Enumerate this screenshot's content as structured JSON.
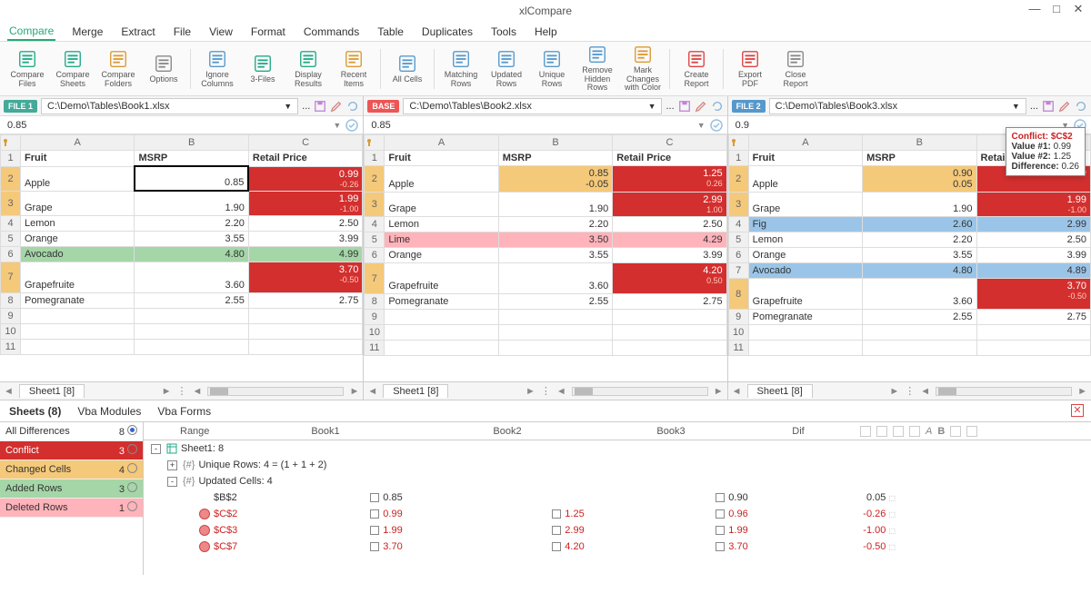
{
  "app": {
    "title": "xlCompare"
  },
  "menu": [
    "Compare",
    "Merge",
    "Extract",
    "File",
    "View",
    "Format",
    "Commands",
    "Table",
    "Duplicates",
    "Tools",
    "Help"
  ],
  "ribbon": [
    {
      "id": "compare-files",
      "label": "Compare\nFiles",
      "color": "#2a8"
    },
    {
      "id": "compare-sheets",
      "label": "Compare\nSheets",
      "color": "#2a8"
    },
    {
      "id": "compare-folders",
      "label": "Compare\nFolders",
      "color": "#d93"
    },
    {
      "id": "options",
      "label": "Options",
      "color": "#888"
    },
    {
      "id": "ignore-columns",
      "label": "Ignore\nColumns",
      "color": "#59c"
    },
    {
      "id": "three-files",
      "label": "3-Files",
      "color": "#2a8"
    },
    {
      "id": "display-results",
      "label": "Display\nResults",
      "color": "#2a8"
    },
    {
      "id": "recent-items",
      "label": "Recent\nItems",
      "color": "#d93"
    },
    {
      "id": "all-cells",
      "label": "All Cells",
      "color": "#59c"
    },
    {
      "id": "matching-rows",
      "label": "Matching\nRows",
      "color": "#59c"
    },
    {
      "id": "updated-rows",
      "label": "Updated\nRows",
      "color": "#59c"
    },
    {
      "id": "unique-rows",
      "label": "Unique\nRows",
      "color": "#59c"
    },
    {
      "id": "remove-hidden",
      "label": "Remove\nHidden Rows",
      "color": "#59c"
    },
    {
      "id": "mark-changes",
      "label": "Mark Changes\nwith Color",
      "color": "#d93"
    },
    {
      "id": "create-report",
      "label": "Create\nReport",
      "color": "#d44"
    },
    {
      "id": "export-pdf",
      "label": "Export\nPDF",
      "color": "#d44"
    },
    {
      "id": "close-report",
      "label": "Close\nReport",
      "color": "#888"
    }
  ],
  "panes": [
    {
      "badge": "FILE 1",
      "badgeClass": "green",
      "path": "C:\\Demo\\Tables\\Book1.xlsx",
      "fx": "0.85",
      "cols": [
        "A",
        "B",
        "C"
      ],
      "headers": [
        "Fruit",
        "MSRP",
        "Retail Price"
      ],
      "rows": [
        {
          "n": 1,
          "hdr": true
        },
        {
          "n": 2,
          "mark": true,
          "cells": [
            {
              "v": "Apple"
            },
            {
              "v": "0.85",
              "sel": true,
              "num": true
            },
            {
              "v": "0.99",
              "sub": "-0.26",
              "cls": "diff-red",
              "num": true
            }
          ]
        },
        {
          "n": 3,
          "mark": true,
          "cells": [
            {
              "v": "Grape"
            },
            {
              "v": "1.90",
              "num": true
            },
            {
              "v": "1.99",
              "sub": "-1.00",
              "cls": "diff-red",
              "num": true
            }
          ]
        },
        {
          "n": 4,
          "cells": [
            {
              "v": "Lemon"
            },
            {
              "v": "2.20",
              "num": true
            },
            {
              "v": "2.50",
              "num": true
            }
          ]
        },
        {
          "n": 5,
          "cells": [
            {
              "v": "Orange"
            },
            {
              "v": "3.55",
              "num": true
            },
            {
              "v": "3.99",
              "num": true
            }
          ]
        },
        {
          "n": 6,
          "cells": [
            {
              "v": "Avocado",
              "cls": "added"
            },
            {
              "v": "4.80",
              "cls": "added",
              "num": true
            },
            {
              "v": "4.99",
              "cls": "added",
              "num": true
            }
          ]
        },
        {
          "n": 7,
          "mark": true,
          "cells": [
            {
              "v": "Grapefruite"
            },
            {
              "v": "3.60",
              "num": true
            },
            {
              "v": "3.70",
              "sub": "-0.50",
              "cls": "diff-red",
              "num": true
            }
          ],
          "tall": true
        },
        {
          "n": 8,
          "cells": [
            {
              "v": "Pomegranate"
            },
            {
              "v": "2.55",
              "num": true
            },
            {
              "v": "2.75",
              "num": true
            }
          ]
        },
        {
          "n": 9,
          "cells": [
            {
              "v": ""
            },
            {
              "v": ""
            },
            {
              "v": ""
            }
          ]
        },
        {
          "n": 10,
          "cells": [
            {
              "v": ""
            },
            {
              "v": ""
            },
            {
              "v": ""
            }
          ]
        },
        {
          "n": 11,
          "cells": [
            {
              "v": ""
            },
            {
              "v": ""
            },
            {
              "v": ""
            }
          ]
        }
      ],
      "sheet": "Sheet1 [8]"
    },
    {
      "badge": "BASE",
      "badgeClass": "red",
      "path": "C:\\Demo\\Tables\\Book2.xlsx",
      "fx": "0.85",
      "cols": [
        "A",
        "B",
        "C"
      ],
      "headers": [
        "Fruit",
        "MSRP",
        "Retail Price"
      ],
      "rows": [
        {
          "n": 1,
          "hdr": true
        },
        {
          "n": 2,
          "mark": true,
          "cells": [
            {
              "v": "Apple"
            },
            {
              "v": "0.85",
              "sub": "-0.05",
              "cls": "diff-orange",
              "num": true
            },
            {
              "v": "1.25",
              "sub": "0.26",
              "cls": "diff-red",
              "num": true
            }
          ]
        },
        {
          "n": 3,
          "mark": true,
          "cells": [
            {
              "v": "Grape"
            },
            {
              "v": "1.90",
              "num": true
            },
            {
              "v": "2.99",
              "sub": "1.00",
              "cls": "diff-red",
              "num": true
            }
          ]
        },
        {
          "n": 4,
          "cells": [
            {
              "v": "Lemon"
            },
            {
              "v": "2.20",
              "num": true
            },
            {
              "v": "2.50",
              "num": true
            }
          ]
        },
        {
          "n": 5,
          "cells": [
            {
              "v": "Lime",
              "cls": "deleted"
            },
            {
              "v": "3.50",
              "cls": "deleted",
              "num": true
            },
            {
              "v": "4.29",
              "cls": "deleted",
              "num": true
            }
          ]
        },
        {
          "n": 6,
          "cells": [
            {
              "v": "Orange"
            },
            {
              "v": "3.55",
              "num": true
            },
            {
              "v": "3.99",
              "num": true
            }
          ]
        },
        {
          "n": 7,
          "mark": true,
          "cells": [
            {
              "v": "Grapefruite"
            },
            {
              "v": "3.60",
              "num": true
            },
            {
              "v": "4.20",
              "sub": "0.50",
              "cls": "diff-red",
              "num": true
            }
          ],
          "tall": true
        },
        {
          "n": 8,
          "cells": [
            {
              "v": "Pomegranate"
            },
            {
              "v": "2.55",
              "num": true
            },
            {
              "v": "2.75",
              "num": true
            }
          ]
        },
        {
          "n": 9,
          "cells": [
            {
              "v": ""
            },
            {
              "v": ""
            },
            {
              "v": ""
            }
          ]
        },
        {
          "n": 10,
          "cells": [
            {
              "v": ""
            },
            {
              "v": ""
            },
            {
              "v": ""
            }
          ]
        },
        {
          "n": 11,
          "cells": [
            {
              "v": ""
            },
            {
              "v": ""
            },
            {
              "v": ""
            }
          ]
        }
      ],
      "sheet": "Sheet1 [8]"
    },
    {
      "badge": "FILE 2",
      "badgeClass": "blue",
      "path": "C:\\Demo\\Tables\\Book3.xlsx",
      "fx": "0.9",
      "cols": [
        "A",
        "B",
        "C"
      ],
      "headers": [
        "Fruit",
        "MSRP",
        "Retail Price"
      ],
      "rows": [
        {
          "n": 1,
          "hdr": true
        },
        {
          "n": 2,
          "mark": true,
          "cells": [
            {
              "v": "Apple"
            },
            {
              "v": "0.90",
              "sub": "0.05",
              "cls": "diff-orange",
              "num": true
            },
            {
              "v": "",
              "sub": "-0.29",
              "cls": "diff-red",
              "num": true
            }
          ]
        },
        {
          "n": 3,
          "mark": true,
          "cells": [
            {
              "v": "Grape"
            },
            {
              "v": "1.90",
              "num": true
            },
            {
              "v": "1.99",
              "sub": "-1.00",
              "cls": "diff-red",
              "num": true
            }
          ]
        },
        {
          "n": 4,
          "cells": [
            {
              "v": "Fig",
              "cls": "blue-row"
            },
            {
              "v": "2.60",
              "cls": "blue-row",
              "num": true
            },
            {
              "v": "2.99",
              "cls": "blue-row",
              "num": true
            }
          ]
        },
        {
          "n": 5,
          "cells": [
            {
              "v": "Lemon"
            },
            {
              "v": "2.20",
              "num": true
            },
            {
              "v": "2.50",
              "num": true
            }
          ]
        },
        {
          "n": 6,
          "cells": [
            {
              "v": "Orange"
            },
            {
              "v": "3.55",
              "num": true
            },
            {
              "v": "3.99",
              "num": true
            }
          ]
        },
        {
          "n": 7,
          "cells": [
            {
              "v": "Avocado",
              "cls": "blue-row"
            },
            {
              "v": "4.80",
              "cls": "blue-row",
              "num": true
            },
            {
              "v": "4.89",
              "cls": "blue-row",
              "num": true
            }
          ]
        },
        {
          "n": 8,
          "mark": true,
          "cells": [
            {
              "v": "Grapefruite"
            },
            {
              "v": "3.60",
              "num": true
            },
            {
              "v": "3.70",
              "sub": "-0.50",
              "cls": "diff-red",
              "num": true
            }
          ],
          "tall": true
        },
        {
          "n": 9,
          "cells": [
            {
              "v": "Pomegranate"
            },
            {
              "v": "2.55",
              "num": true
            },
            {
              "v": "2.75",
              "num": true
            }
          ]
        },
        {
          "n": 10,
          "cells": [
            {
              "v": ""
            },
            {
              "v": ""
            },
            {
              "v": ""
            }
          ]
        },
        {
          "n": 11,
          "cells": [
            {
              "v": ""
            },
            {
              "v": ""
            },
            {
              "v": ""
            }
          ]
        }
      ],
      "sheet": "Sheet1 [8]"
    }
  ],
  "tooltip": {
    "title": "Conflict: $C$2",
    "lines": [
      {
        "k": "Value #1:",
        "v": "0.99"
      },
      {
        "k": "Value #2:",
        "v": "1.25"
      },
      {
        "k": "Difference:",
        "v": "0.26"
      }
    ]
  },
  "bottomTabs": [
    "Sheets (8)",
    "Vba Modules",
    "Vba Forms"
  ],
  "filters": [
    {
      "label": "All Differences",
      "count": 8,
      "cls": "",
      "on": true
    },
    {
      "label": "Conflict",
      "count": 3,
      "cls": "conflict"
    },
    {
      "label": "Changed Cells",
      "count": 4,
      "cls": "changed"
    },
    {
      "label": "Added Rows",
      "count": 3,
      "cls": "added-r"
    },
    {
      "label": "Deleted Rows",
      "count": 1,
      "cls": "deleted-r"
    }
  ],
  "diffHeaders": [
    "Range",
    "Book1",
    "Book2",
    "Book3",
    "Dif"
  ],
  "tree": [
    {
      "lvl": 0,
      "tog": "-",
      "icon": "sheet",
      "text": "Sheet1: 8"
    },
    {
      "lvl": 1,
      "tog": "+",
      "icon": "brace",
      "text": "Unique Rows: 4 = (1 + 1 + 2)"
    },
    {
      "lvl": 1,
      "tog": "-",
      "icon": "brace",
      "text": "Updated Cells: 4"
    },
    {
      "lvl": 2,
      "icon": "",
      "range": "$B$2",
      "b1": "0.85",
      "b2": "",
      "b3": "0.90",
      "dif": "0.05"
    },
    {
      "lvl": 2,
      "icon": "sad",
      "range": "$C$2",
      "b1": "0.99",
      "b2": "1.25",
      "b3": "0.96",
      "dif": "-0.26",
      "conflict": true
    },
    {
      "lvl": 2,
      "icon": "sad",
      "range": "$C$3",
      "b1": "1.99",
      "b2": "2.99",
      "b3": "1.99",
      "dif": "-1.00",
      "conflict": true
    },
    {
      "lvl": 2,
      "icon": "sad",
      "range": "$C$7",
      "b1": "3.70",
      "b2": "4.20",
      "b3": "3.70",
      "dif": "-0.50",
      "conflict": true
    }
  ]
}
